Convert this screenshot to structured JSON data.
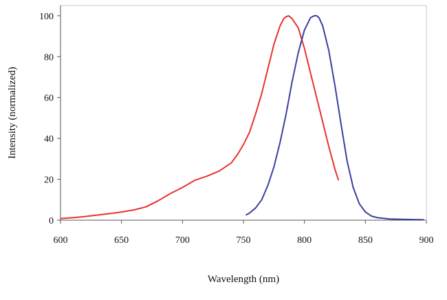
{
  "chart_data": {
    "type": "line",
    "title": "",
    "xlabel": "Wavelength (nm)",
    "ylabel": "Intensity (normalized)",
    "xlim": [
      600,
      900
    ],
    "ylim": [
      0,
      105
    ],
    "xticks": [
      600,
      650,
      700,
      750,
      800,
      850,
      900
    ],
    "yticks": [
      0,
      20,
      40,
      60,
      80,
      100
    ],
    "xtick_labels": [
      "600",
      "650",
      "700",
      "750",
      "800",
      "850",
      "900"
    ],
    "ytick_labels": [
      "0",
      "20",
      "40",
      "60",
      "80",
      "100"
    ],
    "grid": false,
    "legend": "none",
    "series": [
      {
        "color": "#e8312a",
        "x": [
          600,
          610,
          620,
          630,
          640,
          650,
          660,
          670,
          680,
          690,
          700,
          710,
          720,
          730,
          740,
          745,
          750,
          755,
          760,
          765,
          770,
          775,
          780,
          783,
          785,
          787,
          790,
          795,
          800,
          805,
          810,
          815,
          820,
          825,
          828
        ],
        "y": [
          0.8,
          1.2,
          1.8,
          2.5,
          3.2,
          4.0,
          5.0,
          6.5,
          9.5,
          13.0,
          16.0,
          19.5,
          21.5,
          24.0,
          28.0,
          32.0,
          37.0,
          43.0,
          52.0,
          62.0,
          74.0,
          86.0,
          95.0,
          98.5,
          99.5,
          100,
          98.5,
          94.0,
          84.0,
          72.0,
          60.0,
          48.0,
          36.0,
          25.0,
          19.5
        ]
      },
      {
        "color": "#3a3e9e",
        "x": [
          752,
          755,
          760,
          765,
          770,
          775,
          780,
          785,
          790,
          795,
          800,
          805,
          808,
          810,
          812,
          815,
          820,
          825,
          830,
          835,
          840,
          845,
          850,
          855,
          860,
          870,
          880,
          890,
          898
        ],
        "y": [
          2.5,
          3.5,
          6.0,
          10.0,
          17.0,
          26.0,
          38.0,
          52.0,
          68.0,
          82.0,
          93.0,
          99.0,
          100,
          100,
          99.0,
          95.0,
          83.0,
          66.0,
          47.0,
          29.0,
          16.0,
          8.0,
          4.0,
          2.0,
          1.2,
          0.6,
          0.4,
          0.3,
          0.2
        ]
      }
    ]
  }
}
